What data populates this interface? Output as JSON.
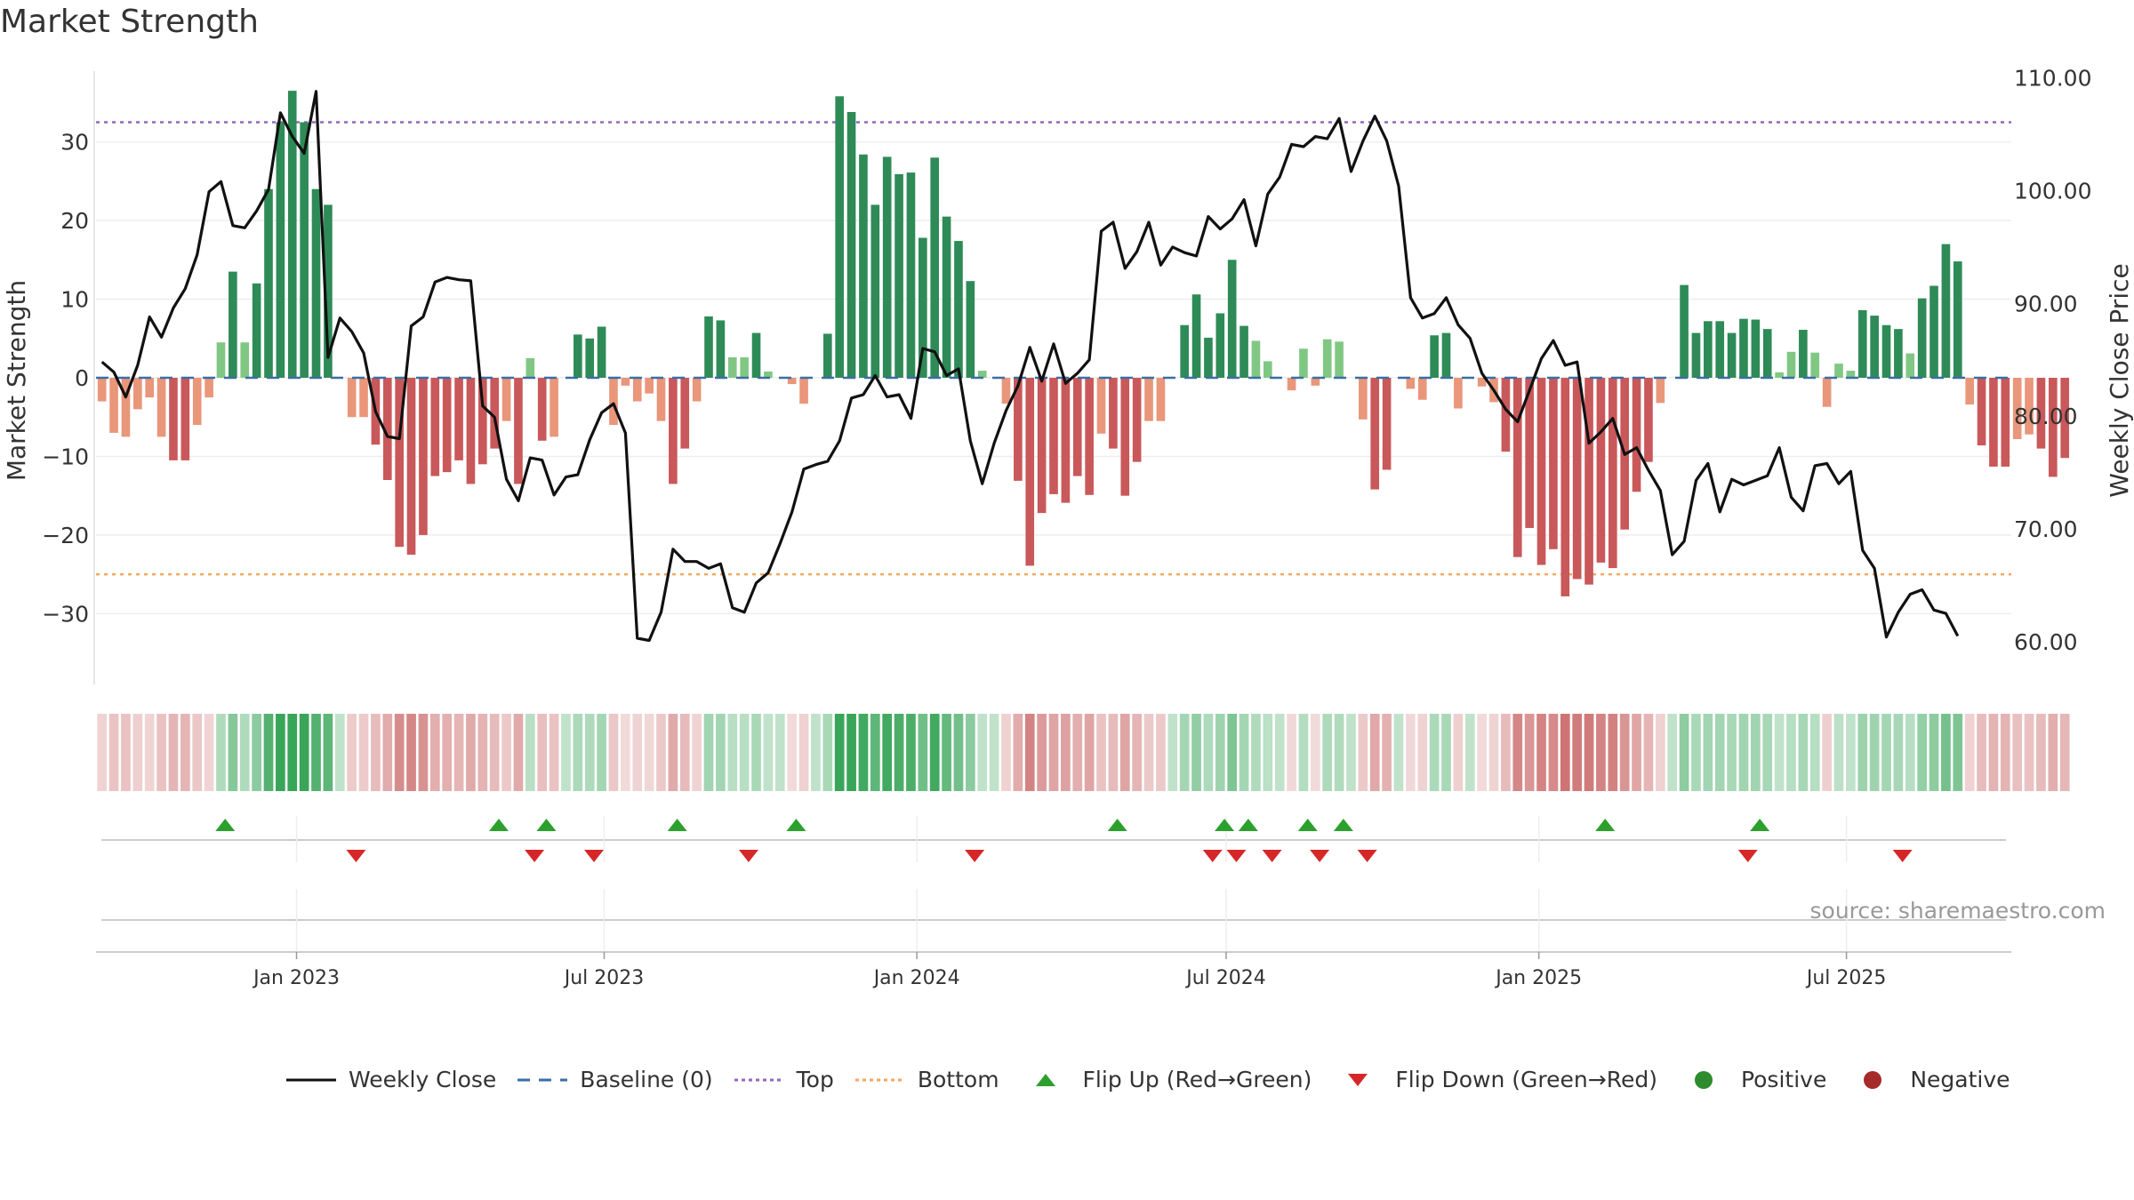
{
  "chart_data": {
    "type": "bar",
    "title": "Market Strength",
    "ylabel": "Market Strength",
    "ylabel_right": "Weekly Close Price",
    "ylim": [
      -39,
      39
    ],
    "ylim_right": [
      56.2,
      110.6
    ],
    "yticks": [
      -30,
      -20,
      -10,
      0,
      10,
      20,
      30
    ],
    "yticks_right": [
      "60.00",
      "70.00",
      "80.00",
      "90.00",
      "100.00",
      "110.00"
    ],
    "x_start": "2022-09-05",
    "x_end": "2025-10-06",
    "x_step_days": 7,
    "xticks": [
      {
        "label": "Jan 2023",
        "date": "2023-01-01"
      },
      {
        "label": "Jul 2023",
        "date": "2023-07-01"
      },
      {
        "label": "Jan 2024",
        "date": "2024-01-01"
      },
      {
        "label": "Jul 2024",
        "date": "2024-07-01"
      },
      {
        "label": "Jan 2025",
        "date": "2025-01-01"
      },
      {
        "label": "Jul 2025",
        "date": "2025-07-01"
      }
    ],
    "top_threshold": 32.5,
    "bottom_threshold": -25,
    "strength": [
      -3,
      -7,
      -7.5,
      -4,
      -2.5,
      -7.5,
      -10.5,
      -10.5,
      -6,
      -2.5,
      4.5,
      13.5,
      4.5,
      12,
      24,
      32.5,
      36.5,
      32.5,
      24,
      22,
      0,
      -5,
      -5,
      -8.5,
      -13,
      -21.5,
      -22.5,
      -20,
      -12.5,
      -12,
      -10.5,
      -13.5,
      -11,
      -9,
      -5.5,
      -13.5,
      2.5,
      -8,
      -7.5,
      0,
      5.5,
      5,
      6.5,
      -6,
      -1,
      -3,
      -2,
      -5.5,
      -13.5,
      -9,
      -3,
      7.8,
      7.3,
      2.6,
      2.6,
      5.7,
      0.8,
      0,
      -0.8,
      -3.3,
      0,
      5.6,
      35.8,
      33.8,
      28.4,
      22,
      28.1,
      25.9,
      26.1,
      17.8,
      28,
      20.5,
      17.4,
      12.3,
      0.9,
      0,
      -3.3,
      -13.1,
      -23.9,
      -17.2,
      -14.8,
      -15.9,
      -12.5,
      -14.9,
      -7.1,
      -9,
      -15,
      -10.7,
      -5.5,
      -5.5,
      0,
      6.7,
      10.6,
      5.1,
      8.2,
      15,
      6.6,
      4.7,
      2.1,
      0,
      -1.6,
      3.7,
      -1,
      4.9,
      4.6,
      0,
      -5.3,
      -14.2,
      -11.7,
      0,
      -1.4,
      -2.8,
      5.4,
      5.7,
      -3.9,
      0,
      -1.1,
      -3.1,
      -9.4,
      -22.8,
      -19.1,
      -23.8,
      -21.8,
      -27.8,
      -25.6,
      -26.3,
      -23.5,
      -24.2,
      -19.3,
      -14.5,
      -10.7,
      -3.2,
      0,
      11.8,
      5.7,
      7.2,
      7.2,
      5.7,
      7.5,
      7.4,
      6.2,
      0.7,
      3.3,
      6.1,
      3.2,
      -3.7,
      1.8,
      0.9,
      8.6,
      7.9,
      6.7,
      6.2,
      3.1,
      10.1,
      11.7,
      17,
      14.8,
      -3.4,
      -8.6,
      -11.3,
      -11.3,
      -7.8,
      -7.2,
      -9,
      -12.6,
      -10.2
    ],
    "close": [
      84.8,
      83.9,
      81.7,
      84.5,
      88.8,
      87,
      89.6,
      91.3,
      94.3,
      99.9,
      100.8,
      96.9,
      96.7,
      98.2,
      100.1,
      106.9,
      104.8,
      103.3,
      108.8,
      85.2,
      88.7,
      87.5,
      85.6,
      80.4,
      78.2,
      78,
      88,
      88.8,
      91.9,
      92.3,
      92.1,
      92,
      80.9,
      79.9,
      74.4,
      72.5,
      76.3,
      76.1,
      73,
      74.6,
      74.8,
      77.9,
      80.3,
      81.1,
      78.5,
      60.3,
      60.1,
      62.6,
      68.2,
      67.1,
      67.1,
      66.5,
      66.9,
      63,
      62.6,
      65.2,
      66.1,
      68.7,
      71.5,
      75.3,
      75.7,
      76,
      77.8,
      81.6,
      81.9,
      83.6,
      81.7,
      81.9,
      79.8,
      86,
      85.7,
      83.6,
      84.2,
      77.8,
      74,
      77.6,
      80.5,
      82.7,
      86.1,
      83.1,
      86.4,
      82.9,
      83.8,
      85,
      96.4,
      97.2,
      93.1,
      94.6,
      97.2,
      93.4,
      95,
      94.5,
      94.2,
      97.7,
      96.6,
      97.5,
      99.2,
      95.1,
      99.7,
      101.2,
      104.1,
      103.9,
      104.8,
      104.6,
      106.4,
      101.7,
      104.4,
      106.6,
      104.4,
      100.4,
      90.5,
      88.7,
      89.1,
      90.5,
      88.1,
      86.9,
      83.8,
      82.3,
      80.6,
      79.5,
      82.3,
      85.1,
      86.7,
      84.5,
      84.8,
      77.6,
      78.6,
      79.8,
      76.6,
      77.2,
      75.2,
      73.4,
      67.7,
      68.9,
      74.3,
      75.8,
      71.5,
      74.4,
      73.9,
      74.3,
      74.7,
      77.2,
      72.8,
      71.6,
      75.6,
      75.8,
      74,
      75.1,
      68.1,
      66.5,
      60.4,
      62.6,
      64.2,
      64.6,
      62.8,
      62.5,
      60.5
    ],
    "flip_up_dates": [
      "2022-11-20",
      "2023-04-30",
      "2023-05-28",
      "2023-08-13",
      "2023-10-22",
      "2024-04-28",
      "2024-06-30",
      "2024-07-14",
      "2024-08-18",
      "2024-09-08",
      "2025-02-09",
      "2025-05-11"
    ],
    "flip_down_dates": [
      "2023-02-05",
      "2023-05-21",
      "2023-06-25",
      "2023-09-24",
      "2024-02-04",
      "2024-06-23",
      "2024-07-07",
      "2024-07-28",
      "2024-08-25",
      "2024-09-22",
      "2025-05-04",
      "2025-08-03"
    ],
    "colors": {
      "strong_pos": "#2e8b57",
      "weak_pos": "#81c784",
      "strong_neg": "#c9585a",
      "weak_neg": "#e9967a",
      "close_line": "#111111",
      "baseline": "#3a6ea5",
      "top_line": "#9467bd",
      "bottom_line": "#f0a860",
      "flip_up": "#2ca02c",
      "flip_down": "#d62728",
      "positive": "#2e8b2e",
      "negative": "#a52a2a"
    },
    "legend": [
      {
        "label": "Weekly Close",
        "kind": "solid-line"
      },
      {
        "label": "Baseline (0)",
        "kind": "dashed-line"
      },
      {
        "label": "Top",
        "kind": "dotted-purple"
      },
      {
        "label": "Bottom",
        "kind": "dotted-orange"
      },
      {
        "label": "Flip Up (Red→Green)",
        "kind": "triangle-up"
      },
      {
        "label": "Flip Down (Green→Red)",
        "kind": "triangle-down"
      },
      {
        "label": "Positive",
        "kind": "dot-green"
      },
      {
        "label": "Negative",
        "kind": "dot-red"
      }
    ],
    "source": "source: sharemaestro.com"
  }
}
